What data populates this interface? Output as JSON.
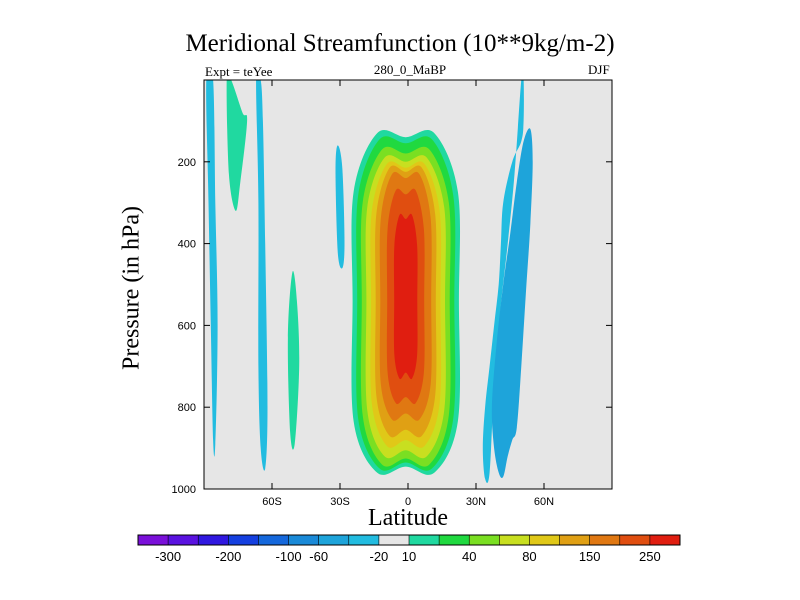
{
  "chart_data": {
    "type": "contour",
    "title": "Meridional Streamfunction (10**9kg/m-2)",
    "left_label": "Expt = teYee",
    "center_label": "280_0_MaBP",
    "right_label": "DJF",
    "xlabel": "Latitude",
    "ylabel": "Pressure (in hPa)",
    "xlim": [
      -90,
      90
    ],
    "ylim": [
      1000,
      0
    ],
    "x_ticks": [
      {
        "value": -60,
        "label": "60S"
      },
      {
        "value": -30,
        "label": "30S"
      },
      {
        "value": 0,
        "label": "0"
      },
      {
        "value": 30,
        "label": "30N"
      },
      {
        "value": 60,
        "label": "60N"
      }
    ],
    "y_ticks": [
      {
        "value": 200,
        "label": "200"
      },
      {
        "value": 400,
        "label": "400"
      },
      {
        "value": 600,
        "label": "600"
      },
      {
        "value": 800,
        "label": "800"
      },
      {
        "value": 1000,
        "label": "1000"
      }
    ],
    "colorbar": {
      "colors": [
        "#7a10d9",
        "#5a12e0",
        "#3018e0",
        "#1540e0",
        "#1568dc",
        "#1a8ad8",
        "#1ea4da",
        "#22bce0",
        "#e6e6e6",
        "#20d9a0",
        "#20d940",
        "#7adf22",
        "#c8df20",
        "#e0c818",
        "#e0a014",
        "#e07812",
        "#e04e10",
        "#e01e10"
      ],
      "labels": [
        {
          "after_index": 0,
          "label": "-300"
        },
        {
          "after_index": 2,
          "label": "-200"
        },
        {
          "after_index": 4,
          "label": "-100"
        },
        {
          "after_index": 5,
          "label": "-60"
        },
        {
          "after_index": 7,
          "label": "-20"
        },
        {
          "after_index": 8,
          "label": "10"
        },
        {
          "after_index": 10,
          "label": "40"
        },
        {
          "after_index": 12,
          "label": "80"
        },
        {
          "after_index": 14,
          "label": "150"
        },
        {
          "after_index": 16,
          "label": "250"
        }
      ]
    },
    "regions": [
      {
        "name": "nh-cyan-cell",
        "color": "#22bce0",
        "lat": [
          34,
          33,
          34,
          36,
          38,
          40,
          41,
          42,
          46,
          50,
          51,
          51,
          50,
          47,
          44,
          41,
          38,
          36
        ],
        "p": [
          975,
          900,
          800,
          700,
          600,
          500,
          400,
          300,
          200,
          150,
          100,
          0,
          0,
          230,
          400,
          550,
          750,
          960
        ]
      },
      {
        "name": "nh-blue-core",
        "color": "#1ea4da",
        "lat": [
          40,
          38,
          37,
          39,
          42,
          45,
          48,
          51,
          54,
          55,
          54,
          52,
          50,
          48,
          46,
          44,
          42
        ],
        "p": [
          960,
          900,
          800,
          650,
          500,
          380,
          250,
          150,
          120,
          200,
          350,
          520,
          700,
          850,
          880,
          920,
          970
        ]
      },
      {
        "name": "sh-cyan-strip-a",
        "color": "#22bce0",
        "lat": [
          -89,
          -88,
          -87,
          -86,
          -85,
          -84,
          -85,
          -86
        ],
        "p": [
          0,
          300,
          600,
          880,
          890,
          600,
          300,
          0
        ]
      },
      {
        "name": "sh-cyan-strip-b",
        "color": "#22bce0",
        "lat": [
          -67,
          -66,
          -66,
          -65,
          -63,
          -62,
          -63,
          -64,
          -65
        ],
        "p": [
          0,
          300,
          700,
          900,
          950,
          800,
          400,
          100,
          0
        ]
      },
      {
        "name": "sh-cyan-patch",
        "color": "#22bce0",
        "lat": [
          -32,
          -31,
          -29,
          -28,
          -29,
          -31
        ],
        "p": [
          220,
          160,
          215,
          400,
          460,
          420
        ]
      },
      {
        "name": "sh-teal-strip",
        "color": "#20d9a0",
        "lat": [
          -80,
          -78,
          -73,
          -71,
          -74,
          -76,
          -79
        ],
        "p": [
          0,
          0,
          80,
          100,
          250,
          320,
          230
        ]
      },
      {
        "name": "sh-teal-patch",
        "color": "#20d9a0",
        "lat": [
          -53,
          -51,
          -49,
          -48,
          -50,
          -52
        ],
        "p": [
          630,
          470,
          540,
          700,
          890,
          860
        ]
      }
    ],
    "jet": {
      "levels": [
        10,
        20,
        40,
        60,
        80,
        100,
        150,
        200,
        250
      ],
      "colors": [
        "#20d9a0",
        "#20d940",
        "#7adf22",
        "#c8df20",
        "#e0c818",
        "#e0a014",
        "#e07812",
        "#e04e10",
        "#e01e10"
      ],
      "center_lat": -1,
      "center_p": 540,
      "halfwidth_lat": [
        23,
        21,
        19,
        17,
        15,
        13,
        11,
        8,
        5
      ],
      "p_top": [
        130,
        145,
        170,
        190,
        205,
        215,
        230,
        270,
        330
      ],
      "p_bottom": [
        960,
        950,
        940,
        920,
        895,
        870,
        830,
        790,
        730
      ]
    }
  }
}
